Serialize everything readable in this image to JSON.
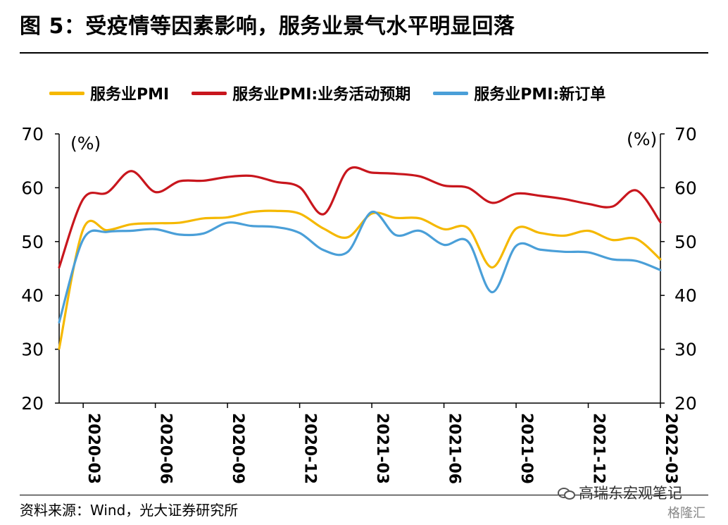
{
  "title": "图 5：受疫情等因素影响，服务业景气水平明显回落",
  "source": "资料来源：Wind，光大证券研究所",
  "watermark": "高瑞东宏观笔记",
  "badge": "格隆汇",
  "colors": {
    "yellow": "#f5b800",
    "red": "#c8161d",
    "blue": "#4a9fd8"
  },
  "chart_data": {
    "type": "line",
    "ylabel_left": "(%)",
    "ylabel_right": "(%)",
    "ylim": [
      20,
      70
    ],
    "yticks": [
      20,
      30,
      40,
      50,
      60,
      70
    ],
    "legend_placement": "top",
    "grid": false,
    "x": [
      "2020-02",
      "2020-03",
      "2020-04",
      "2020-05",
      "2020-06",
      "2020-07",
      "2020-08",
      "2020-09",
      "2020-10",
      "2020-11",
      "2020-12",
      "2021-01",
      "2021-02",
      "2021-03",
      "2021-04",
      "2021-05",
      "2021-06",
      "2021-07",
      "2021-08",
      "2021-09",
      "2021-10",
      "2021-11",
      "2021-12",
      "2022-01",
      "2022-02",
      "2022-03"
    ],
    "xticks": [
      "2020-03",
      "2020-06",
      "2020-09",
      "2020-12",
      "2021-03",
      "2021-06",
      "2021-09",
      "2021-12",
      "2022-03"
    ],
    "series": [
      {
        "name": "服务业PMI",
        "color_key": "yellow",
        "values": [
          30.1,
          52.3,
          52.1,
          53.2,
          53.4,
          53.5,
          54.3,
          54.5,
          55.5,
          55.7,
          55.2,
          52.4,
          50.8,
          55.2,
          54.4,
          54.3,
          52.3,
          52.5,
          45.2,
          52.4,
          51.6,
          51.1,
          52.0,
          50.3,
          50.5,
          46.7
        ]
      },
      {
        "name": "服务业PMI:业务活动预期",
        "color_key": "red",
        "values": [
          45.2,
          57.9,
          59.1,
          63.1,
          59.2,
          61.2,
          61.3,
          62.0,
          62.2,
          61.1,
          60.1,
          55.1,
          63.3,
          62.8,
          62.6,
          62.1,
          60.4,
          60.0,
          57.2,
          58.9,
          58.5,
          57.9,
          57.0,
          56.5,
          59.5,
          53.6
        ]
      },
      {
        "name": "服务业PMI:新订单",
        "color_key": "blue",
        "values": [
          35.0,
          50.4,
          51.8,
          52.0,
          52.3,
          51.3,
          51.5,
          53.5,
          52.9,
          52.7,
          51.6,
          48.4,
          48.1,
          55.5,
          51.2,
          52.0,
          49.4,
          50.0,
          40.6,
          49.2,
          48.5,
          48.1,
          48.0,
          46.7,
          46.4,
          44.7
        ]
      }
    ]
  }
}
